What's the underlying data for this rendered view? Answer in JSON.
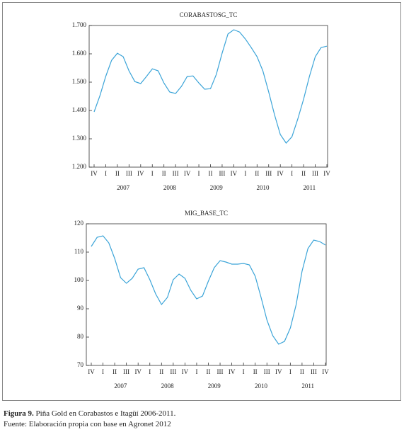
{
  "chart_data": [
    {
      "type": "line",
      "title": "CORABASTOSG_TC",
      "categories": [
        "IV",
        null,
        "I",
        null,
        "II",
        null,
        "III",
        null,
        "IV",
        null,
        "I",
        null,
        "II",
        null,
        "III",
        null,
        "IV",
        null,
        "I",
        null,
        "II",
        null,
        "III",
        null,
        "IV",
        null,
        "I",
        null,
        "II",
        null,
        "III",
        null,
        "IV",
        null,
        "I",
        null,
        "II",
        null,
        "III",
        null,
        "IV"
      ],
      "years": [
        "2007",
        "2008",
        "2009",
        "2010",
        "2011"
      ],
      "series": [
        {
          "name": "CORABASTOSG_TC",
          "color": "#3ba4d8",
          "values": [
            1395,
            1452,
            1520,
            1577,
            1602,
            1590,
            1540,
            1502,
            1495,
            1520,
            1547,
            1540,
            1497,
            1465,
            1460,
            1485,
            1520,
            1522,
            1497,
            1475,
            1477,
            1527,
            1602,
            1670,
            1685,
            1677,
            1652,
            1622,
            1590,
            1540,
            1465,
            1385,
            1315,
            1285,
            1307,
            1370,
            1440,
            1520,
            1590,
            1622,
            1627
          ]
        }
      ],
      "ylim": [
        1200,
        1700
      ],
      "yticks": [
        {
          "value": 1200,
          "label": "1.200"
        },
        {
          "value": 1300,
          "label": "1.300"
        },
        {
          "value": 1400,
          "label": "1.400"
        },
        {
          "value": 1500,
          "label": "1.500"
        },
        {
          "value": 1600,
          "label": "1.600"
        },
        {
          "value": 1700,
          "label": "1.700"
        }
      ]
    },
    {
      "type": "line",
      "title": "MIG_BASE_TC",
      "categories": [
        "IV",
        null,
        "I",
        null,
        "II",
        null,
        "III",
        null,
        "IV",
        null,
        "I",
        null,
        "II",
        null,
        "III",
        null,
        "IV",
        null,
        "I",
        null,
        "II",
        null,
        "III",
        null,
        "IV",
        null,
        "I",
        null,
        "II",
        null,
        "III",
        null,
        "IV",
        null,
        "I",
        null,
        "II",
        null,
        "III",
        null,
        "IV"
      ],
      "years": [
        "2007",
        "2008",
        "2009",
        "2010",
        "2011"
      ],
      "series": [
        {
          "name": "MIG_BASE_TC",
          "color": "#3ba4d8",
          "values": [
            112,
            115.25,
            115.75,
            113.25,
            107.75,
            101,
            99,
            100.75,
            104,
            104.5,
            100.25,
            95.25,
            91.5,
            94,
            100.25,
            102.25,
            100.75,
            96.5,
            93.5,
            94.5,
            99.75,
            104.5,
            107,
            106.5,
            105.75,
            105.75,
            106,
            105.5,
            101.5,
            94,
            86,
            80.5,
            77.5,
            78.5,
            83.25,
            91.5,
            103.25,
            111.25,
            114.25,
            113.75,
            112.5
          ]
        }
      ],
      "ylim": [
        70,
        120
      ],
      "yticks": [
        70,
        80,
        90,
        100,
        110,
        120
      ]
    }
  ],
  "caption": {
    "label": "Figura 9.",
    "text": " Piña Gold en Corabastos e Itagüí 2006-2011."
  },
  "source": "Fuente: Elaboración propia con base en Agronet 2012"
}
